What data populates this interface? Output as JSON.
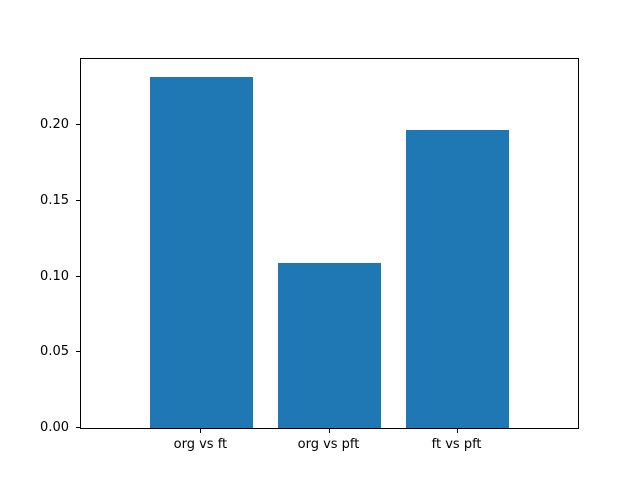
{
  "figure": {
    "background": "#ffffff"
  },
  "chart_data": {
    "type": "bar",
    "categories": [
      "org vs ft",
      "org vs pft",
      "ft vs pft"
    ],
    "values": [
      0.232,
      0.109,
      0.197
    ],
    "title": "",
    "xlabel": "",
    "ylabel": "",
    "ylim": [
      0,
      0.2436
    ],
    "yticks": [
      0.0,
      0.05,
      0.1,
      0.15,
      0.2
    ],
    "ytick_labels": [
      "0.00",
      "0.05",
      "0.10",
      "0.15",
      "0.20"
    ],
    "bar_color": "#1f77b4",
    "bar_width_fraction": 0.8,
    "x_axis_pad_fraction": 0.54,
    "grid": false,
    "legend": null
  }
}
